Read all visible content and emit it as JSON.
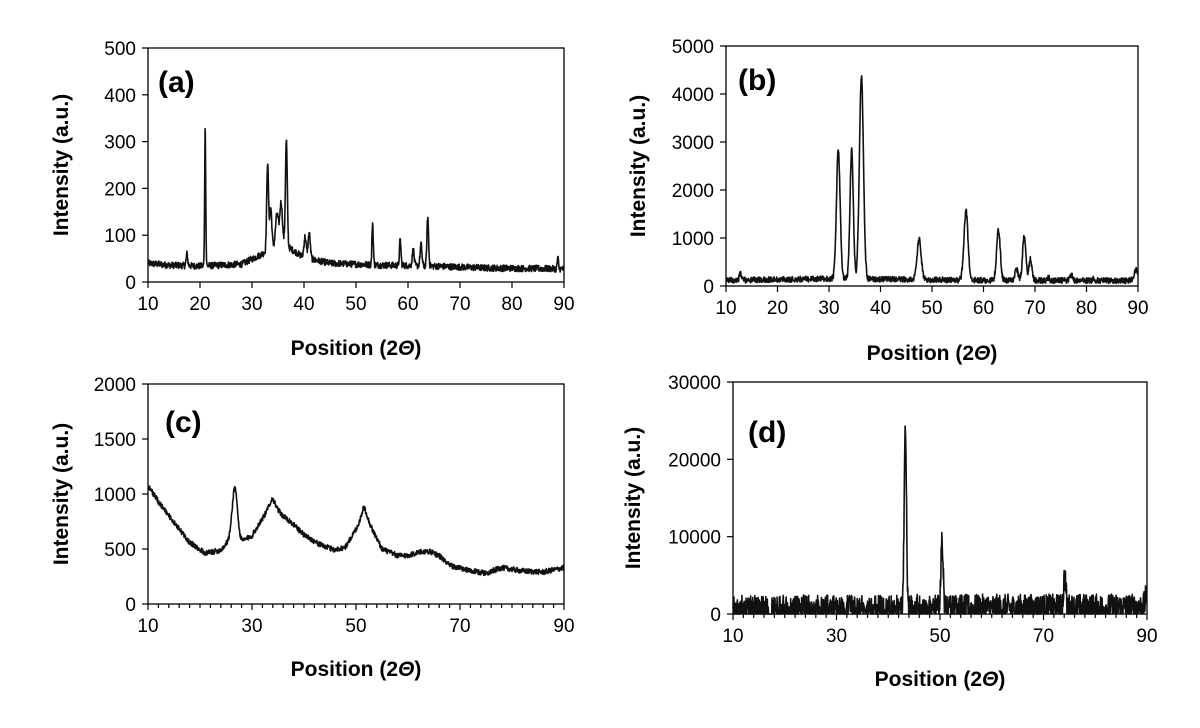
{
  "colors": {
    "trace": "#111111",
    "background": "#ffffff"
  },
  "chart_data": [
    {
      "id": "a",
      "type": "line",
      "panel_label": "(a)",
      "xlabel": "Position (2",
      "xlabel_symbol": "Θ",
      "xlabel_close": ")",
      "ylabel": "Intensity (a.u.)",
      "xlim": [
        10,
        90
      ],
      "ylim": [
        0,
        500
      ],
      "xticks": [
        10,
        20,
        30,
        40,
        50,
        60,
        70,
        80,
        90
      ],
      "yticks": [
        0,
        100,
        200,
        300,
        400,
        500
      ],
      "minor_xticks": false,
      "grid": false,
      "noise": 14,
      "baseline": [
        [
          10,
          40
        ],
        [
          14,
          36
        ],
        [
          20,
          34
        ],
        [
          28,
          38
        ],
        [
          32,
          60
        ],
        [
          36,
          82
        ],
        [
          40,
          52
        ],
        [
          45,
          40
        ],
        [
          55,
          36
        ],
        [
          65,
          34
        ],
        [
          75,
          30
        ],
        [
          90,
          28
        ]
      ],
      "peaks": [
        {
          "x": 21.0,
          "y": 300,
          "w": 0.15
        },
        {
          "x": 33.0,
          "y": 190,
          "w": 0.25
        },
        {
          "x": 33.6,
          "y": 90,
          "w": 0.3
        },
        {
          "x": 34.8,
          "y": 70,
          "w": 0.4
        },
        {
          "x": 35.6,
          "y": 90,
          "w": 0.35
        },
        {
          "x": 36.6,
          "y": 225,
          "w": 0.25
        },
        {
          "x": 40.2,
          "y": 45,
          "w": 0.3
        },
        {
          "x": 41.0,
          "y": 55,
          "w": 0.3
        },
        {
          "x": 53.2,
          "y": 90,
          "w": 0.18
        },
        {
          "x": 58.5,
          "y": 55,
          "w": 0.2
        },
        {
          "x": 61.0,
          "y": 35,
          "w": 0.25
        },
        {
          "x": 62.5,
          "y": 45,
          "w": 0.25
        },
        {
          "x": 63.8,
          "y": 105,
          "w": 0.22
        },
        {
          "x": 17.5,
          "y": 25,
          "w": 0.2
        },
        {
          "x": 88.8,
          "y": 25,
          "w": 0.15
        }
      ]
    },
    {
      "id": "b",
      "type": "line",
      "panel_label": "(b)",
      "xlabel": "Position (2",
      "xlabel_symbol": "Θ",
      "xlabel_close": ")",
      "ylabel": "Intensity (a.u.)",
      "xlim": [
        10,
        90
      ],
      "ylim": [
        0,
        5000
      ],
      "xticks": [
        10,
        20,
        30,
        40,
        50,
        60,
        70,
        80,
        90
      ],
      "yticks": [
        0,
        1000,
        2000,
        3000,
        4000,
        5000
      ],
      "minor_xticks": false,
      "grid": false,
      "noise": 12,
      "baseline": [
        [
          10,
          120
        ],
        [
          30,
          150
        ],
        [
          40,
          140
        ],
        [
          60,
          120
        ],
        [
          88,
          110
        ],
        [
          90,
          200
        ]
      ],
      "peaks": [
        {
          "x": 12.8,
          "y": 130,
          "w": 0.3
        },
        {
          "x": 31.8,
          "y": 2700,
          "w": 0.5
        },
        {
          "x": 34.4,
          "y": 2700,
          "w": 0.45
        },
        {
          "x": 36.3,
          "y": 4250,
          "w": 0.55
        },
        {
          "x": 47.5,
          "y": 850,
          "w": 0.55
        },
        {
          "x": 56.6,
          "y": 1450,
          "w": 0.55
        },
        {
          "x": 62.9,
          "y": 1050,
          "w": 0.5
        },
        {
          "x": 66.4,
          "y": 250,
          "w": 0.4
        },
        {
          "x": 67.9,
          "y": 900,
          "w": 0.45
        },
        {
          "x": 69.1,
          "y": 450,
          "w": 0.4
        },
        {
          "x": 72.6,
          "y": 60,
          "w": 0.3
        },
        {
          "x": 77.0,
          "y": 120,
          "w": 0.4
        },
        {
          "x": 81.4,
          "y": 50,
          "w": 0.3
        },
        {
          "x": 89.6,
          "y": 150,
          "w": 0.4
        }
      ]
    },
    {
      "id": "c",
      "type": "line",
      "panel_label": "(c)",
      "xlabel": "Position (2",
      "xlabel_symbol": "Θ",
      "xlabel_close": ")",
      "ylabel": "Intensity (a.u.)",
      "xlim": [
        10,
        90
      ],
      "ylim": [
        0,
        2000
      ],
      "xticks": [
        10,
        30,
        50,
        70,
        90
      ],
      "yticks": [
        0,
        500,
        1000,
        1500,
        2000
      ],
      "minor_xticks": true,
      "grid": false,
      "noise": 12,
      "baseline": [
        [
          10,
          1080
        ],
        [
          12,
          930
        ],
        [
          15,
          740
        ],
        [
          18,
          560
        ],
        [
          21,
          460
        ],
        [
          24,
          490
        ],
        [
          26,
          600
        ],
        [
          28,
          570
        ],
        [
          30,
          620
        ],
        [
          32,
          780
        ],
        [
          34,
          900
        ],
        [
          36,
          800
        ],
        [
          38,
          720
        ],
        [
          40,
          630
        ],
        [
          43,
          540
        ],
        [
          46,
          490
        ],
        [
          48,
          520
        ],
        [
          50,
          680
        ],
        [
          51.5,
          800
        ],
        [
          53,
          690
        ],
        [
          55,
          500
        ],
        [
          58,
          440
        ],
        [
          60,
          440
        ],
        [
          62,
          470
        ],
        [
          64,
          480
        ],
        [
          66,
          440
        ],
        [
          68,
          350
        ],
        [
          72,
          300
        ],
        [
          75,
          280
        ],
        [
          78,
          330
        ],
        [
          82,
          300
        ],
        [
          86,
          290
        ],
        [
          90,
          330
        ]
      ],
      "peaks": [
        {
          "x": 26.7,
          "y": 470,
          "w": 0.7
        },
        {
          "x": 33.8,
          "y": 60,
          "w": 0.8
        },
        {
          "x": 51.6,
          "y": 80,
          "w": 0.8
        }
      ]
    },
    {
      "id": "d",
      "type": "line",
      "panel_label": "(d)",
      "xlabel": "Position (2",
      "xlabel_symbol": "Θ",
      "xlabel_close": ")",
      "ylabel": "Intensity (a.u.)",
      "xlim": [
        10,
        90
      ],
      "ylim": [
        0,
        30000
      ],
      "xticks": [
        10,
        30,
        50,
        70,
        90
      ],
      "yticks": [
        0,
        10000,
        20000,
        30000
      ],
      "minor_xticks": true,
      "grid": false,
      "noise": 60,
      "baseline": [
        [
          10,
          600
        ],
        [
          40,
          700
        ],
        [
          70,
          800
        ],
        [
          89.3,
          850
        ],
        [
          90,
          2500
        ]
      ],
      "peaks": [
        {
          "x": 43.3,
          "y": 23300,
          "w": 0.3
        },
        {
          "x": 50.4,
          "y": 8600,
          "w": 0.3
        },
        {
          "x": 74.1,
          "y": 4100,
          "w": 0.3
        }
      ]
    }
  ]
}
